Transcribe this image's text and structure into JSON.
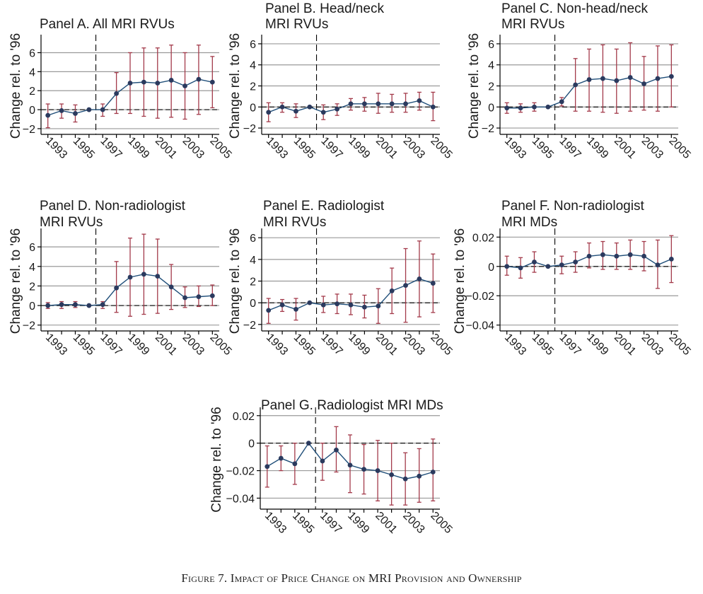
{
  "caption": "Figure 7. Impact of Price Change on MRI Provision and Ownership",
  "colors": {
    "series_line": "#1f4e79",
    "series_marker": "#2b3a5e",
    "error_bar": "#a33a4a",
    "gridline": "#9a9a9a",
    "axis": "#000000",
    "reference_line": "#000000"
  },
  "chart_data": [
    {
      "id": "A",
      "type": "line",
      "title": [
        "Panel A. All MRI RVUs"
      ],
      "ylabel": "Change rel. to '96",
      "ylim": [
        -2.6,
        7.6
      ],
      "yticks": [
        -2,
        0,
        2,
        4,
        6
      ],
      "ytick_labels": [
        "−2",
        "0",
        "2",
        "4",
        "6"
      ],
      "x": [
        1993,
        1994,
        1995,
        1996,
        1997,
        1998,
        1999,
        2000,
        2001,
        2002,
        2003,
        2004,
        2005
      ],
      "xtick_labels": [
        "1993",
        "1995",
        "1997",
        "1999",
        "2001",
        "2003",
        "2005"
      ],
      "reference_x": 1996.5,
      "y": [
        -0.6,
        -0.1,
        -0.4,
        0,
        0.0,
        1.7,
        2.8,
        2.9,
        2.8,
        3.1,
        2.5,
        3.2,
        2.9
      ],
      "ci_low": [
        -1.9,
        -0.9,
        -1.3,
        0,
        -0.7,
        -0.4,
        -0.4,
        -0.7,
        -0.9,
        -0.8,
        -1.0,
        -0.5,
        0.2
      ],
      "ci_high": [
        0.6,
        0.6,
        0.5,
        0,
        0.6,
        3.9,
        6.0,
        6.5,
        6.5,
        6.8,
        6.0,
        6.8,
        5.6
      ],
      "grid": true
    },
    {
      "id": "B",
      "type": "line",
      "title": [
        "Panel B. Head/neck",
        "MRI RVUs"
      ],
      "ylabel": "Change rel. to '96",
      "ylim": [
        -2.6,
        6.6
      ],
      "yticks": [
        -2,
        0,
        2,
        4,
        6
      ],
      "ytick_labels": [
        "−2",
        "0",
        "2",
        "4",
        "6"
      ],
      "x": [
        1993,
        1994,
        1995,
        1996,
        1997,
        1998,
        1999,
        2000,
        2001,
        2002,
        2003,
        2004,
        2005
      ],
      "xtick_labels": [
        "1993",
        "1995",
        "1997",
        "1999",
        "2001",
        "2003",
        "2005"
      ],
      "reference_x": 1996.5,
      "y": [
        -0.5,
        0.0,
        -0.4,
        0,
        -0.5,
        -0.2,
        0.3,
        0.3,
        0.3,
        0.3,
        0.3,
        0.6,
        0.0
      ],
      "ci_low": [
        -1.4,
        -0.5,
        -1.0,
        0,
        -1.2,
        -0.8,
        -0.3,
        -0.4,
        -0.6,
        -0.5,
        -0.5,
        -0.3,
        -1.3
      ],
      "ci_high": [
        0.4,
        0.4,
        0.3,
        0,
        0.2,
        0.3,
        0.8,
        0.9,
        1.3,
        1.2,
        1.3,
        1.4,
        1.4
      ],
      "grid": true
    },
    {
      "id": "C",
      "type": "line",
      "title": [
        "Panel C. Non-head/neck",
        "MRI RVUs"
      ],
      "ylabel": "Change rel. to '96",
      "ylim": [
        -2.6,
        6.6
      ],
      "yticks": [
        -2,
        0,
        2,
        4,
        6
      ],
      "ytick_labels": [
        "−2",
        "0",
        "2",
        "4",
        "6"
      ],
      "x": [
        1993,
        1994,
        1995,
        1996,
        1997,
        1998,
        1999,
        2000,
        2001,
        2002,
        2003,
        2004,
        2005
      ],
      "xtick_labels": [
        "1993",
        "1995",
        "1997",
        "1999",
        "2001",
        "2003",
        "2005"
      ],
      "reference_x": 1996.5,
      "y": [
        -0.1,
        -0.1,
        0.0,
        0,
        0.5,
        2.1,
        2.6,
        2.7,
        2.5,
        2.8,
        2.2,
        2.7,
        2.9
      ],
      "ci_low": [
        -0.6,
        -0.5,
        -0.4,
        0,
        0.1,
        -0.4,
        -0.4,
        -0.5,
        -0.6,
        -0.4,
        -0.3,
        -0.4,
        0.0
      ],
      "ci_high": [
        0.4,
        0.3,
        0.4,
        0,
        0.9,
        4.6,
        5.5,
        5.9,
        5.5,
        6.1,
        4.8,
        5.8,
        5.9
      ],
      "grid": true
    },
    {
      "id": "D",
      "type": "line",
      "title": [
        "Panel D. Non-radiologist",
        "MRI RVUs"
      ],
      "ylabel": "Change rel. to '96",
      "ylim": [
        -2.6,
        7.6
      ],
      "yticks": [
        -2,
        0,
        2,
        4,
        6
      ],
      "ytick_labels": [
        "−2",
        "0",
        "2",
        "4",
        "6"
      ],
      "x": [
        1993,
        1994,
        1995,
        1996,
        1997,
        1998,
        1999,
        2000,
        2001,
        2002,
        2003,
        2004,
        2005
      ],
      "xtick_labels": [
        "1993",
        "1995",
        "1997",
        "1999",
        "2001",
        "2003",
        "2005"
      ],
      "reference_x": 1996.5,
      "y": [
        0.0,
        0.1,
        0.1,
        0,
        0.1,
        1.8,
        2.9,
        3.2,
        3.0,
        1.9,
        0.8,
        0.9,
        1.0
      ],
      "ci_low": [
        -0.3,
        -0.3,
        -0.2,
        0,
        -0.3,
        -0.7,
        -1.1,
        -0.9,
        -0.8,
        -0.4,
        -0.2,
        -0.1,
        0.0
      ],
      "ci_high": [
        0.3,
        0.4,
        0.4,
        0,
        0.4,
        4.5,
        6.9,
        7.3,
        6.8,
        4.2,
        1.9,
        2.0,
        2.1
      ],
      "grid": true
    },
    {
      "id": "E",
      "type": "line",
      "title": [
        "Panel E. Radiologist",
        "MRI RVUs"
      ],
      "ylabel": "Change rel. to '96",
      "ylim": [
        -2.6,
        6.6
      ],
      "yticks": [
        -2,
        0,
        2,
        4,
        6
      ],
      "ytick_labels": [
        "−2",
        "0",
        "2",
        "4",
        "6"
      ],
      "x": [
        1993,
        1994,
        1995,
        1996,
        1997,
        1998,
        1999,
        2000,
        2001,
        2002,
        2003,
        2004,
        2005
      ],
      "xtick_labels": [
        "1993",
        "1995",
        "1997",
        "1999",
        "2001",
        "2003",
        "2005"
      ],
      "reference_x": 1996.5,
      "y": [
        -0.7,
        -0.2,
        -0.6,
        0,
        -0.2,
        -0.1,
        -0.2,
        -0.4,
        -0.3,
        1.1,
        1.6,
        2.2,
        1.8
      ],
      "ci_low": [
        -1.9,
        -0.8,
        -1.6,
        0,
        -0.9,
        -1.0,
        -1.1,
        -1.4,
        -1.9,
        -1.0,
        -1.8,
        -1.3,
        -0.9
      ],
      "ci_high": [
        0.4,
        0.3,
        0.4,
        0,
        0.6,
        0.8,
        0.8,
        0.7,
        1.3,
        3.2,
        5.0,
        5.7,
        4.5
      ],
      "grid": true
    },
    {
      "id": "F",
      "type": "line",
      "title": [
        "Panel F. Non-radiologist",
        "MRI MDs"
      ],
      "ylabel": "Change rel. to '96",
      "ylim": [
        -0.044,
        0.024
      ],
      "yticks": [
        -0.04,
        -0.02,
        0,
        0.02
      ],
      "ytick_labels": [
        "−0.04",
        "−0.02",
        "0",
        "0.02"
      ],
      "x": [
        1993,
        1994,
        1995,
        1996,
        1997,
        1998,
        1999,
        2000,
        2001,
        2002,
        2003,
        2004,
        2005
      ],
      "xtick_labels": [
        "1993",
        "1995",
        "1997",
        "1999",
        "2001",
        "2003",
        "2005"
      ],
      "reference_x": 1996.5,
      "y": [
        0.0,
        -0.001,
        0.003,
        0,
        0.001,
        0.003,
        0.007,
        0.008,
        0.007,
        0.008,
        0.007,
        0.001,
        0.005
      ],
      "ci_low": [
        -0.006,
        -0.008,
        -0.004,
        0,
        -0.005,
        -0.004,
        -0.001,
        -0.002,
        -0.002,
        -0.002,
        -0.003,
        -0.015,
        -0.011
      ],
      "ci_high": [
        0.007,
        0.006,
        0.01,
        0,
        0.007,
        0.01,
        0.016,
        0.017,
        0.016,
        0.018,
        0.017,
        0.018,
        0.021
      ],
      "grid": true
    },
    {
      "id": "G",
      "type": "line",
      "title": [
        "Panel G. Radiologist MRI MDs"
      ],
      "ylabel": "Change rel. to '96",
      "ylim": [
        -0.048,
        0.024
      ],
      "yticks": [
        -0.04,
        -0.02,
        0,
        0.02
      ],
      "ytick_labels": [
        "−0.04",
        "−0.02",
        "0",
        "0.02"
      ],
      "x": [
        1993,
        1994,
        1995,
        1996,
        1997,
        1998,
        1999,
        2000,
        2001,
        2002,
        2003,
        2004,
        2005
      ],
      "xtick_labels": [
        "1993",
        "1995",
        "1997",
        "1999",
        "2001",
        "2003",
        "2005"
      ],
      "reference_x": 1996.5,
      "y": [
        -0.017,
        -0.011,
        -0.015,
        0,
        -0.013,
        -0.005,
        -0.016,
        -0.019,
        -0.02,
        -0.023,
        -0.026,
        -0.024,
        -0.021
      ],
      "ci_low": [
        -0.032,
        -0.02,
        -0.03,
        0,
        -0.027,
        -0.021,
        -0.036,
        -0.037,
        -0.042,
        -0.045,
        -0.045,
        -0.043,
        -0.042
      ],
      "ci_high": [
        -0.002,
        -0.002,
        0.0,
        0,
        0.0,
        0.012,
        0.006,
        -0.001,
        0.002,
        0.0,
        -0.007,
        -0.004,
        0.003
      ],
      "grid": true
    }
  ]
}
